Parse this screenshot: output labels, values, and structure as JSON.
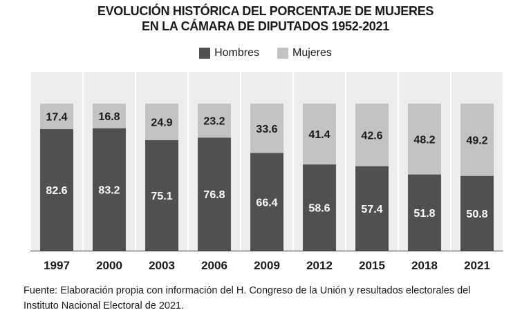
{
  "title_line1": "EVOLUCIÓN HISTÓRICA DEL PORCENTAJE DE MUJERES",
  "title_line2": "EN LA CÁMARA DE DIPUTADOS 1952-2021",
  "source_line1": "Fuente: Elaboración propia con información del H. Congreso de la Unión y resultados electorales del",
  "source_line2": "Instituto Nacional Electoral de 2021.",
  "colors": {
    "hombres": "#505050",
    "mujeres": "#c3c3c3",
    "band": "#ededed"
  },
  "chart_data": {
    "type": "bar",
    "stacked": true,
    "title": "EVOLUCIÓN HISTÓRICA DEL PORCENTAJE DE MUJERES EN LA CÁMARA DE DIPUTADOS 1952-2021",
    "categories": [
      "1997",
      "2000",
      "2003",
      "2006",
      "2009",
      "2012",
      "2015",
      "2018",
      "2021"
    ],
    "series": [
      {
        "name": "Hombres",
        "values": [
          82.6,
          83.2,
          75.1,
          76.8,
          66.4,
          58.6,
          57.4,
          51.8,
          50.8
        ]
      },
      {
        "name": "Mujeres",
        "values": [
          17.4,
          16.8,
          24.9,
          23.2,
          33.6,
          41.4,
          42.6,
          48.2,
          49.2
        ]
      }
    ],
    "ylim": [
      0,
      100
    ],
    "xlabel": "",
    "ylabel": "",
    "legend": "top-center"
  }
}
